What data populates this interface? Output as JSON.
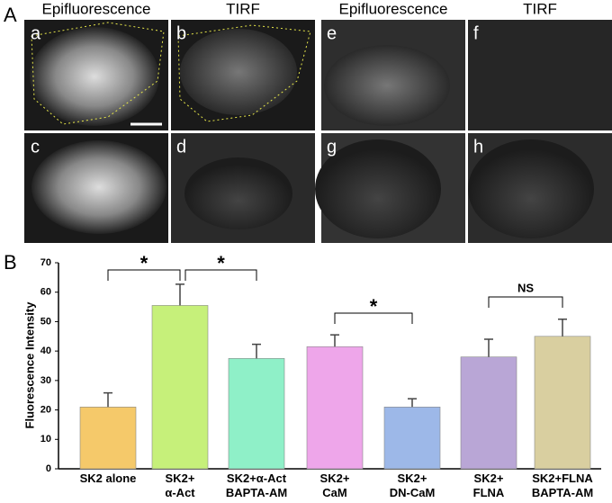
{
  "panel_a": {
    "label": "A",
    "headers": [
      "Epifluorescence",
      "TIRF",
      "Epifluorescence",
      "TIRF"
    ],
    "image_labels": [
      "a",
      "b",
      "c",
      "d",
      "e",
      "f",
      "g",
      "h"
    ]
  },
  "chart_data": {
    "type": "bar",
    "panel_label": "B",
    "y_label": "Fluorescence Intensity",
    "categories": [
      "SK2 alone",
      "SK2+\nα-Act",
      "SK2+α-Act\nBAPTA-AM",
      "SK2+\nCaM",
      "SK2+\nDN-CaM",
      "SK2+\nFLNA",
      "SK2+FLNA\nBAPTA-AM"
    ],
    "values": [
      21,
      55.5,
      37.5,
      41.5,
      21,
      38,
      45
    ],
    "errors": [
      4.8,
      7.2,
      4.8,
      4,
      2.8,
      6,
      5.8
    ],
    "colors": [
      "#f5c96a",
      "#c6f07a",
      "#8ff0c8",
      "#eea6ea",
      "#9db8e8",
      "#b9a6d6",
      "#d9cfa0"
    ],
    "ylim": [
      0,
      70
    ],
    "yticks": [
      0,
      10,
      20,
      30,
      40,
      50,
      60,
      70
    ],
    "annotations": [
      "*",
      "*",
      "*",
      "NS"
    ]
  }
}
